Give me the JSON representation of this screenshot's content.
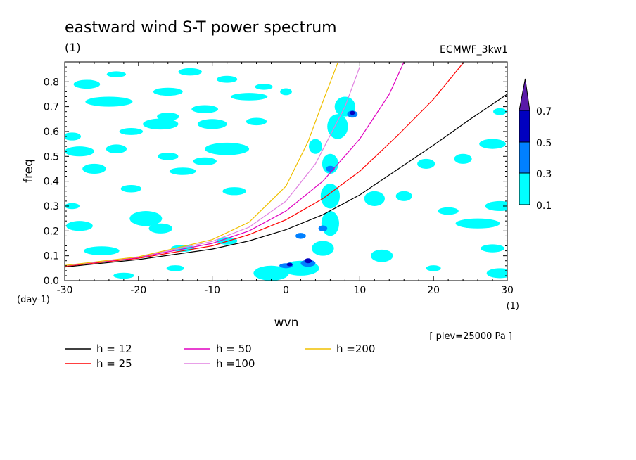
{
  "title": "eastward wind S-T power spectrum",
  "title_units": "(1)",
  "dataset": "ECMWF_3kw1",
  "pressure_note": "[ plev=25000 Pa ]",
  "colors": {
    "contour_0_1": "#00ffff",
    "contour_0_3": "#0080ff",
    "contour_0_5": "#0000c0",
    "contour_0_7": "#5a1aa8"
  },
  "chart_data": {
    "type": "heatmap",
    "title": "eastward wind S-T power spectrum",
    "xlabel": "wvn",
    "ylabel": "freq",
    "x_units": "(1)",
    "y_units": "(day-1)",
    "xlim": [
      -30,
      30
    ],
    "ylim": [
      0.0,
      0.88
    ],
    "x_ticks": [
      -30,
      -20,
      -10,
      0,
      10,
      20,
      30
    ],
    "y_ticks": [
      0.0,
      0.1,
      0.2,
      0.3,
      0.4,
      0.5,
      0.6,
      0.7,
      0.8
    ],
    "x_tick_labels": [
      "-30",
      "-20",
      "-10",
      "0",
      "10",
      "20",
      "30"
    ],
    "y_tick_labels": [
      "0.0",
      "0.1",
      "0.2",
      "0.3",
      "0.4",
      "0.5",
      "0.6",
      "0.7",
      "0.8"
    ],
    "colorbar": {
      "levels": [
        0.1,
        0.3,
        0.5,
        0.7
      ],
      "labels": [
        "0.1",
        "0.3",
        "0.5",
        "0.7"
      ],
      "colors": [
        "#00ffff",
        "#0080ff",
        "#0000c0",
        "#5a1aa8"
      ]
    },
    "series": [
      {
        "name": "h = 12",
        "color": "#000000",
        "x": [
          -30,
          -20,
          -10,
          -5,
          0,
          5,
          10,
          15,
          20,
          25,
          30
        ],
        "y": [
          0.055,
          0.085,
          0.127,
          0.16,
          0.205,
          0.265,
          0.345,
          0.445,
          0.545,
          0.65,
          0.75
        ]
      },
      {
        "name": "h = 25",
        "color": "#ff0000",
        "x": [
          -30,
          -20,
          -10,
          -5,
          0,
          5,
          10,
          15,
          20,
          24
        ],
        "y": [
          0.058,
          0.09,
          0.14,
          0.185,
          0.245,
          0.33,
          0.44,
          0.58,
          0.73,
          0.875
        ]
      },
      {
        "name": "h = 50",
        "color": "#e000c0",
        "x": [
          -30,
          -20,
          -10,
          -5,
          0,
          5,
          10,
          14,
          16
        ],
        "y": [
          0.06,
          0.093,
          0.15,
          0.2,
          0.28,
          0.4,
          0.57,
          0.75,
          0.88
        ]
      },
      {
        "name": "h =100",
        "color": "#e080e0",
        "x": [
          -30,
          -20,
          -10,
          -5,
          0,
          4,
          8,
          10
        ],
        "y": [
          0.06,
          0.095,
          0.158,
          0.215,
          0.32,
          0.47,
          0.7,
          0.86
        ]
      },
      {
        "name": "h =200",
        "color": "#f0c000",
        "x": [
          -30,
          -20,
          -10,
          -5,
          0,
          3,
          5,
          7
        ],
        "y": [
          0.061,
          0.096,
          0.165,
          0.235,
          0.38,
          0.56,
          0.72,
          0.875
        ]
      }
    ],
    "contour_patches": [
      {
        "x": -27,
        "y": 0.79,
        "rx": 1.8,
        "ry": 0.018,
        "level": 0.1
      },
      {
        "x": -23,
        "y": 0.83,
        "rx": 1.3,
        "ry": 0.012,
        "level": 0.1
      },
      {
        "x": -13,
        "y": 0.84,
        "rx": 1.6,
        "ry": 0.015,
        "level": 0.1
      },
      {
        "x": -8,
        "y": 0.81,
        "rx": 1.4,
        "ry": 0.014,
        "level": 0.1
      },
      {
        "x": -16,
        "y": 0.76,
        "rx": 2.0,
        "ry": 0.016,
        "level": 0.1
      },
      {
        "x": -5,
        "y": 0.74,
        "rx": 2.5,
        "ry": 0.015,
        "level": 0.1
      },
      {
        "x": -3,
        "y": 0.78,
        "rx": 1.2,
        "ry": 0.012,
        "level": 0.1
      },
      {
        "x": 0,
        "y": 0.76,
        "rx": 0.8,
        "ry": 0.014,
        "level": 0.1
      },
      {
        "x": -24,
        "y": 0.72,
        "rx": 3.2,
        "ry": 0.02,
        "level": 0.1
      },
      {
        "x": -11,
        "y": 0.69,
        "rx": 1.8,
        "ry": 0.016,
        "level": 0.1
      },
      {
        "x": -16,
        "y": 0.66,
        "rx": 1.5,
        "ry": 0.016,
        "level": 0.1
      },
      {
        "x": -17,
        "y": 0.63,
        "rx": 2.4,
        "ry": 0.022,
        "level": 0.1
      },
      {
        "x": -10,
        "y": 0.63,
        "rx": 2.0,
        "ry": 0.02,
        "level": 0.1
      },
      {
        "x": -4,
        "y": 0.64,
        "rx": 1.4,
        "ry": 0.015,
        "level": 0.1
      },
      {
        "x": -21,
        "y": 0.6,
        "rx": 1.6,
        "ry": 0.014,
        "level": 0.1
      },
      {
        "x": -29,
        "y": 0.58,
        "rx": 1.2,
        "ry": 0.016,
        "level": 0.1
      },
      {
        "x": -28,
        "y": 0.52,
        "rx": 2.0,
        "ry": 0.02,
        "level": 0.1
      },
      {
        "x": -23,
        "y": 0.53,
        "rx": 1.4,
        "ry": 0.018,
        "level": 0.1
      },
      {
        "x": -16,
        "y": 0.5,
        "rx": 1.4,
        "ry": 0.015,
        "level": 0.1
      },
      {
        "x": -8,
        "y": 0.53,
        "rx": 3.0,
        "ry": 0.025,
        "level": 0.1
      },
      {
        "x": -11,
        "y": 0.48,
        "rx": 1.6,
        "ry": 0.016,
        "level": 0.1
      },
      {
        "x": -26,
        "y": 0.45,
        "rx": 1.6,
        "ry": 0.02,
        "level": 0.1
      },
      {
        "x": -14,
        "y": 0.44,
        "rx": 1.8,
        "ry": 0.015,
        "level": 0.1
      },
      {
        "x": -21,
        "y": 0.37,
        "rx": 1.4,
        "ry": 0.015,
        "level": 0.1
      },
      {
        "x": -7,
        "y": 0.36,
        "rx": 1.6,
        "ry": 0.016,
        "level": 0.1
      },
      {
        "x": -29,
        "y": 0.3,
        "rx": 1.0,
        "ry": 0.012,
        "level": 0.1
      },
      {
        "x": -19,
        "y": 0.25,
        "rx": 2.2,
        "ry": 0.03,
        "level": 0.1
      },
      {
        "x": -17,
        "y": 0.21,
        "rx": 1.6,
        "ry": 0.02,
        "level": 0.1
      },
      {
        "x": -28,
        "y": 0.22,
        "rx": 1.8,
        "ry": 0.02,
        "level": 0.1
      },
      {
        "x": -25,
        "y": 0.12,
        "rx": 2.4,
        "ry": 0.018,
        "level": 0.1
      },
      {
        "x": -14,
        "y": 0.13,
        "rx": 1.6,
        "ry": 0.014,
        "level": 0.1
      },
      {
        "x": -8,
        "y": 0.16,
        "rx": 1.4,
        "ry": 0.015,
        "level": 0.1
      },
      {
        "x": -22,
        "y": 0.02,
        "rx": 1.4,
        "ry": 0.012,
        "level": 0.1
      },
      {
        "x": -15,
        "y": 0.05,
        "rx": 1.2,
        "ry": 0.012,
        "level": 0.1
      },
      {
        "x": -2,
        "y": 0.03,
        "rx": 2.4,
        "ry": 0.03,
        "level": 0.1
      },
      {
        "x": 2,
        "y": 0.05,
        "rx": 2.5,
        "ry": 0.03,
        "level": 0.1
      },
      {
        "x": 5,
        "y": 0.13,
        "rx": 1.5,
        "ry": 0.03,
        "level": 0.1
      },
      {
        "x": 6,
        "y": 0.23,
        "rx": 1.2,
        "ry": 0.05,
        "level": 0.1
      },
      {
        "x": 6,
        "y": 0.34,
        "rx": 1.3,
        "ry": 0.05,
        "level": 0.1
      },
      {
        "x": 6,
        "y": 0.47,
        "rx": 1.1,
        "ry": 0.04,
        "level": 0.1
      },
      {
        "x": 7,
        "y": 0.62,
        "rx": 1.4,
        "ry": 0.05,
        "level": 0.1
      },
      {
        "x": 8,
        "y": 0.7,
        "rx": 1.4,
        "ry": 0.04,
        "level": 0.1
      },
      {
        "x": 4,
        "y": 0.54,
        "rx": 0.9,
        "ry": 0.03,
        "level": 0.1
      },
      {
        "x": 12,
        "y": 0.33,
        "rx": 1.4,
        "ry": 0.03,
        "level": 0.1
      },
      {
        "x": 13,
        "y": 0.1,
        "rx": 1.5,
        "ry": 0.025,
        "level": 0.1
      },
      {
        "x": 16,
        "y": 0.34,
        "rx": 1.1,
        "ry": 0.02,
        "level": 0.1
      },
      {
        "x": 19,
        "y": 0.47,
        "rx": 1.2,
        "ry": 0.02,
        "level": 0.1
      },
      {
        "x": 24,
        "y": 0.49,
        "rx": 1.2,
        "ry": 0.02,
        "level": 0.1
      },
      {
        "x": 28,
        "y": 0.55,
        "rx": 1.8,
        "ry": 0.02,
        "level": 0.1
      },
      {
        "x": 26,
        "y": 0.23,
        "rx": 3.0,
        "ry": 0.02,
        "level": 0.1
      },
      {
        "x": 29,
        "y": 0.3,
        "rx": 2.0,
        "ry": 0.02,
        "level": 0.1
      },
      {
        "x": 22,
        "y": 0.28,
        "rx": 1.4,
        "ry": 0.015,
        "level": 0.1
      },
      {
        "x": 28,
        "y": 0.13,
        "rx": 1.6,
        "ry": 0.016,
        "level": 0.1
      },
      {
        "x": 29,
        "y": 0.03,
        "rx": 1.8,
        "ry": 0.02,
        "level": 0.1
      },
      {
        "x": 20,
        "y": 0.05,
        "rx": 1.0,
        "ry": 0.012,
        "level": 0.1
      },
      {
        "x": 29,
        "y": 0.68,
        "rx": 0.9,
        "ry": 0.014,
        "level": 0.1
      },
      {
        "x": 3,
        "y": 0.07,
        "rx": 1.0,
        "ry": 0.014,
        "level": 0.3
      },
      {
        "x": 0,
        "y": 0.06,
        "rx": 0.9,
        "ry": 0.01,
        "level": 0.3
      },
      {
        "x": 2,
        "y": 0.18,
        "rx": 0.7,
        "ry": 0.012,
        "level": 0.3
      },
      {
        "x": 5,
        "y": 0.21,
        "rx": 0.6,
        "ry": 0.012,
        "level": 0.3
      },
      {
        "x": 6,
        "y": 0.45,
        "rx": 0.6,
        "ry": 0.012,
        "level": 0.3
      },
      {
        "x": 9,
        "y": 0.67,
        "rx": 0.7,
        "ry": 0.014,
        "level": 0.3
      },
      {
        "x": 3,
        "y": 0.08,
        "rx": 0.5,
        "ry": 0.01,
        "level": 0.5
      },
      {
        "x": 0.5,
        "y": 0.065,
        "rx": 0.4,
        "ry": 0.007,
        "level": 0.5
      },
      {
        "x": 9,
        "y": 0.675,
        "rx": 0.35,
        "ry": 0.008,
        "level": 0.5
      }
    ]
  }
}
